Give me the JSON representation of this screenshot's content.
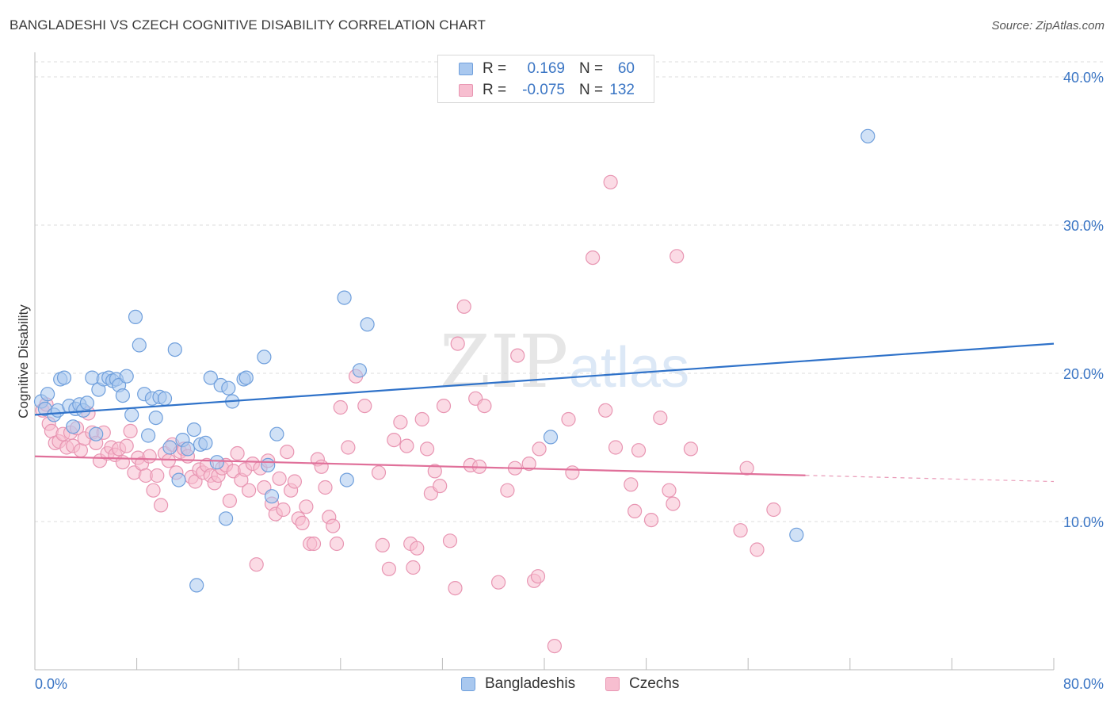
{
  "title": "BANGLADESHI VS CZECH COGNITIVE DISABILITY CORRELATION CHART",
  "source": "Source: ZipAtlas.com",
  "watermark": {
    "zip": "ZIP",
    "atlas": "atlas"
  },
  "colors": {
    "bangladeshi_fill": "#a9c8ef",
    "bangladeshi_stroke": "#6f9fdc",
    "bangladeshi_line": "#2f72c9",
    "czech_fill": "#f7bed0",
    "czech_stroke": "#e895b2",
    "czech_line": "#e0709a",
    "tick_label": "#3a75c4",
    "grid": "#dcdcdc"
  },
  "legend": {
    "rows": [
      {
        "r_label": "R =",
        "r_value": "0.169",
        "n_label": "N =",
        "n_value": "60"
      },
      {
        "r_label": "R =",
        "r_value": "-0.075",
        "n_label": "N =",
        "n_value": "132"
      }
    ]
  },
  "bottom_legend": [
    "Bangladeshis",
    "Czechs"
  ],
  "chart_data": {
    "type": "scatter",
    "ylabel": "Cognitive Disability",
    "xlabel": "",
    "xlim": [
      0,
      80
    ],
    "ylim": [
      0,
      40
    ],
    "x_tick_labels": [
      "0.0%",
      "80.0%"
    ],
    "y_tick_labels": [
      "10.0%",
      "20.0%",
      "30.0%",
      "40.0%"
    ],
    "y_ticks": [
      10,
      20,
      30,
      40
    ],
    "grid": "horizontal dashed",
    "legend_position": "top-center",
    "series": [
      {
        "name": "Bangladeshis",
        "color": "#a9c8ef",
        "trend": {
          "x": [
            0,
            80
          ],
          "y": [
            17.2,
            22.0
          ],
          "dashed_from": null
        },
        "points": [
          [
            0.5,
            18.1
          ],
          [
            0.8,
            17.6
          ],
          [
            1.0,
            18.6
          ],
          [
            1.5,
            17.2
          ],
          [
            1.8,
            17.5
          ],
          [
            2.0,
            19.6
          ],
          [
            2.3,
            19.7
          ],
          [
            2.7,
            17.8
          ],
          [
            3.0,
            16.4
          ],
          [
            3.2,
            17.6
          ],
          [
            3.5,
            17.9
          ],
          [
            3.8,
            17.5
          ],
          [
            4.1,
            18.0
          ],
          [
            4.5,
            19.7
          ],
          [
            4.8,
            15.9
          ],
          [
            5.0,
            18.9
          ],
          [
            5.4,
            19.6
          ],
          [
            5.8,
            19.7
          ],
          [
            6.1,
            19.5
          ],
          [
            6.4,
            19.6
          ],
          [
            6.6,
            19.2
          ],
          [
            6.9,
            18.5
          ],
          [
            7.2,
            19.8
          ],
          [
            7.6,
            17.2
          ],
          [
            7.9,
            23.8
          ],
          [
            8.2,
            21.9
          ],
          [
            8.6,
            18.6
          ],
          [
            8.9,
            15.8
          ],
          [
            9.2,
            18.3
          ],
          [
            9.5,
            17.0
          ],
          [
            9.8,
            18.4
          ],
          [
            10.2,
            18.3
          ],
          [
            10.6,
            15.0
          ],
          [
            11.0,
            21.6
          ],
          [
            11.3,
            12.8
          ],
          [
            11.6,
            15.5
          ],
          [
            12.0,
            14.9
          ],
          [
            12.5,
            16.2
          ],
          [
            13.0,
            15.2
          ],
          [
            13.4,
            15.3
          ],
          [
            13.8,
            19.7
          ],
          [
            14.3,
            14.0
          ],
          [
            14.6,
            19.2
          ],
          [
            15.0,
            10.2
          ],
          [
            15.2,
            19.0
          ],
          [
            15.5,
            18.1
          ],
          [
            16.4,
            19.6
          ],
          [
            16.6,
            19.7
          ],
          [
            18.0,
            21.1
          ],
          [
            18.3,
            13.8
          ],
          [
            18.6,
            11.7
          ],
          [
            19.0,
            15.9
          ],
          [
            12.7,
            5.7
          ],
          [
            24.3,
            25.1
          ],
          [
            24.5,
            12.8
          ],
          [
            25.5,
            20.2
          ],
          [
            26.1,
            23.3
          ],
          [
            40.5,
            15.7
          ],
          [
            59.8,
            9.1
          ],
          [
            65.4,
            36.0
          ]
        ]
      },
      {
        "name": "Czechs",
        "color": "#f7bed0",
        "trend": {
          "x": [
            0,
            80
          ],
          "y": [
            14.4,
            12.7
          ],
          "dashed_from": 60.5
        },
        "points": [
          [
            0.6,
            17.5
          ],
          [
            0.9,
            17.9
          ],
          [
            1.1,
            16.6
          ],
          [
            1.3,
            16.1
          ],
          [
            1.6,
            15.3
          ],
          [
            1.9,
            15.4
          ],
          [
            2.2,
            15.9
          ],
          [
            2.5,
            15.0
          ],
          [
            2.8,
            16.0
          ],
          [
            3.0,
            15.1
          ],
          [
            3.3,
            16.3
          ],
          [
            3.6,
            14.8
          ],
          [
            3.9,
            15.6
          ],
          [
            4.2,
            17.3
          ],
          [
            4.5,
            16.0
          ],
          [
            4.8,
            15.3
          ],
          [
            5.1,
            14.1
          ],
          [
            5.4,
            16.0
          ],
          [
            5.7,
            14.6
          ],
          [
            6.0,
            15.0
          ],
          [
            6.3,
            14.5
          ],
          [
            6.6,
            14.9
          ],
          [
            6.9,
            14.0
          ],
          [
            7.2,
            15.1
          ],
          [
            7.5,
            16.1
          ],
          [
            7.8,
            13.3
          ],
          [
            8.1,
            14.3
          ],
          [
            8.4,
            13.9
          ],
          [
            8.7,
            13.1
          ],
          [
            9.0,
            14.4
          ],
          [
            9.3,
            12.1
          ],
          [
            9.6,
            13.1
          ],
          [
            9.9,
            11.1
          ],
          [
            10.2,
            14.6
          ],
          [
            10.5,
            14.1
          ],
          [
            10.8,
            15.2
          ],
          [
            11.1,
            13.3
          ],
          [
            11.4,
            14.7
          ],
          [
            11.7,
            14.9
          ],
          [
            12.0,
            14.4
          ],
          [
            12.3,
            13.0
          ],
          [
            12.6,
            12.7
          ],
          [
            12.9,
            13.5
          ],
          [
            13.2,
            13.3
          ],
          [
            13.5,
            13.8
          ],
          [
            13.8,
            13.1
          ],
          [
            14.1,
            12.6
          ],
          [
            14.4,
            13.1
          ],
          [
            14.7,
            13.6
          ],
          [
            15.0,
            13.8
          ],
          [
            15.3,
            11.4
          ],
          [
            15.6,
            13.4
          ],
          [
            15.9,
            14.6
          ],
          [
            16.2,
            12.8
          ],
          [
            16.5,
            13.5
          ],
          [
            16.8,
            12.1
          ],
          [
            17.1,
            13.9
          ],
          [
            17.4,
            7.1
          ],
          [
            17.7,
            13.6
          ],
          [
            18.0,
            12.3
          ],
          [
            18.3,
            14.1
          ],
          [
            18.6,
            11.2
          ],
          [
            18.9,
            10.5
          ],
          [
            19.2,
            12.9
          ],
          [
            19.5,
            10.8
          ],
          [
            19.8,
            14.7
          ],
          [
            20.1,
            12.1
          ],
          [
            20.4,
            12.7
          ],
          [
            20.7,
            10.2
          ],
          [
            21.0,
            9.9
          ],
          [
            21.3,
            11.0
          ],
          [
            21.6,
            8.5
          ],
          [
            21.9,
            8.5
          ],
          [
            22.2,
            14.2
          ],
          [
            22.5,
            13.7
          ],
          [
            22.8,
            12.3
          ],
          [
            23.1,
            10.3
          ],
          [
            23.4,
            9.7
          ],
          [
            23.7,
            8.5
          ],
          [
            24.0,
            17.7
          ],
          [
            24.6,
            15.0
          ],
          [
            25.2,
            19.8
          ],
          [
            25.9,
            17.8
          ],
          [
            27.0,
            13.3
          ],
          [
            27.3,
            8.4
          ],
          [
            27.8,
            6.8
          ],
          [
            28.2,
            15.5
          ],
          [
            28.7,
            16.7
          ],
          [
            29.2,
            15.1
          ],
          [
            29.5,
            8.5
          ],
          [
            29.7,
            6.9
          ],
          [
            30.0,
            8.2
          ],
          [
            30.4,
            16.9
          ],
          [
            30.8,
            14.9
          ],
          [
            31.1,
            11.9
          ],
          [
            31.4,
            13.4
          ],
          [
            31.8,
            12.4
          ],
          [
            32.1,
            17.8
          ],
          [
            32.6,
            8.7
          ],
          [
            33.0,
            5.5
          ],
          [
            33.2,
            22.0
          ],
          [
            33.7,
            24.5
          ],
          [
            34.2,
            13.8
          ],
          [
            34.6,
            18.3
          ],
          [
            34.9,
            13.7
          ],
          [
            35.3,
            17.8
          ],
          [
            36.4,
            5.9
          ],
          [
            37.1,
            12.1
          ],
          [
            37.7,
            13.6
          ],
          [
            37.9,
            21.2
          ],
          [
            38.8,
            13.9
          ],
          [
            39.2,
            6.0
          ],
          [
            39.5,
            6.3
          ],
          [
            39.6,
            14.9
          ],
          [
            40.8,
            1.6
          ],
          [
            41.9,
            16.9
          ],
          [
            42.2,
            13.3
          ],
          [
            43.8,
            27.8
          ],
          [
            44.8,
            17.5
          ],
          [
            45.2,
            32.9
          ],
          [
            45.6,
            15.0
          ],
          [
            46.8,
            12.5
          ],
          [
            47.1,
            10.7
          ],
          [
            47.4,
            14.8
          ],
          [
            48.4,
            10.1
          ],
          [
            49.1,
            17.0
          ],
          [
            49.8,
            12.1
          ],
          [
            50.1,
            11.2
          ],
          [
            50.4,
            27.9
          ],
          [
            51.5,
            14.9
          ],
          [
            55.4,
            9.4
          ],
          [
            55.9,
            13.6
          ],
          [
            58.0,
            10.8
          ],
          [
            56.7,
            8.1
          ]
        ]
      }
    ]
  }
}
